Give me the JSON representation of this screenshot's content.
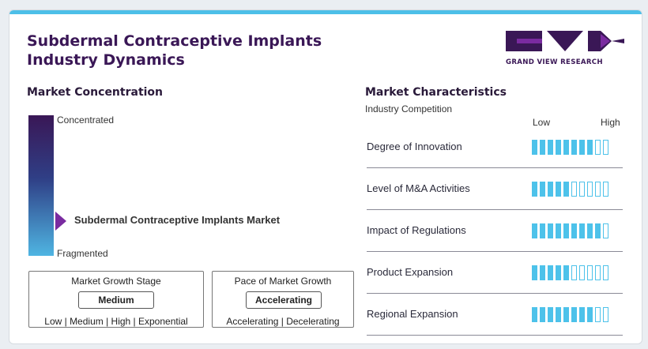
{
  "title_line1": "Subdermal Contraceptive Implants",
  "title_line2": "Industry Dynamics",
  "logo": {
    "text": "GRAND VIEW RESEARCH",
    "colors": {
      "purple": "#3a1756",
      "accent": "#7a2ba0"
    }
  },
  "concentration": {
    "heading": "Market Concentration",
    "top_label": "Concentrated",
    "bottom_label": "Fragmented",
    "marker_label": "Subdermal Contraceptive Implants Market",
    "gradient": [
      "#3a1756",
      "#2f3f86",
      "#4fb5e2"
    ]
  },
  "growth_stage": {
    "title": "Market Growth Stage",
    "value": "Medium",
    "options": "Low | Medium | High | Exponential"
  },
  "growth_pace": {
    "title": "Pace of Market Growth",
    "value": "Accelerating",
    "options": "Accelerating | Decelerating"
  },
  "characteristics": {
    "heading": "Market Characteristics",
    "subheading": "Industry Competition",
    "scale_low": "Low",
    "scale_high": "High",
    "segments_total": 10,
    "bar_color": "#4dc2ea",
    "rows": [
      {
        "label": "Degree of Innovation",
        "level": 8
      },
      {
        "label": "Level of M&A Activities",
        "level": 5
      },
      {
        "label": "Impact of Regulations",
        "level": 9
      },
      {
        "label": "Product Expansion",
        "level": 5
      },
      {
        "label": "Regional Expansion",
        "level": 8
      }
    ]
  }
}
